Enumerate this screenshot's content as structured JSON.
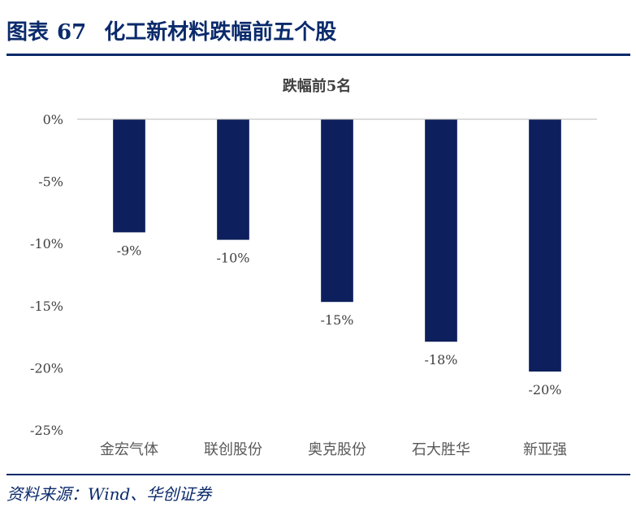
{
  "figure": {
    "label": "图表",
    "number": "67",
    "caption": "化工新材料跌幅前五个股",
    "source": "资料来源：Wind、华创证券"
  },
  "chart_data": {
    "type": "bar",
    "title": "跌幅前5名",
    "categories": [
      "金宏气体",
      "联创股份",
      "奥克股份",
      "石大胜华",
      "新亚强"
    ],
    "values": [
      -9.1,
      -9.7,
      -14.7,
      -17.9,
      -20.3
    ],
    "value_labels": [
      "-9%",
      "-10%",
      "-15%",
      "-18%",
      "-20%"
    ],
    "y_ticks": [
      0,
      -5,
      -10,
      -15,
      -20,
      -25
    ],
    "y_tick_labels": [
      "0%",
      "-5%",
      "-10%",
      "-15%",
      "-20%",
      "-25%"
    ],
    "ylim": [
      -25,
      0
    ],
    "grid": false,
    "bar_color": "#0d1f5c",
    "xlabel": "",
    "ylabel": ""
  }
}
